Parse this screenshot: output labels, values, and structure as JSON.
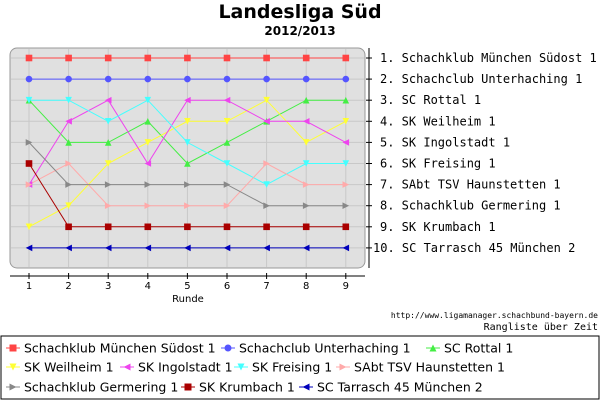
{
  "chart_data": {
    "type": "line",
    "title": "Landesliga Süd",
    "subtitle": "2012/2013",
    "xlabel": "Runde",
    "x": [
      1,
      2,
      3,
      4,
      5,
      6,
      7,
      8,
      9
    ],
    "ylim": [
      1,
      10
    ],
    "y_inverted": true,
    "grid": true,
    "rank_labels": [
      "1. Schachklub München Südost 1",
      "2. Schachclub Unterhaching 1",
      "3. SC Rottal 1",
      "4. SK Weilheim 1",
      "5. SK Ingolstadt 1",
      "6. SK Freising 1",
      "7. SAbt TSV Haunstetten 1",
      "8. Schachklub Germering 1",
      "9. SK Krumbach 1",
      "10. SC Tarrasch 45 München 2"
    ],
    "series": [
      {
        "name": "Schachklub München Südost 1",
        "color": "#ff4444",
        "marker": "square",
        "values": [
          1,
          1,
          1,
          1,
          1,
          1,
          1,
          1,
          1
        ]
      },
      {
        "name": "Schachclub Unterhaching 1",
        "color": "#5555ff",
        "marker": "circle",
        "values": [
          2,
          2,
          2,
          2,
          2,
          2,
          2,
          2,
          2
        ]
      },
      {
        "name": "SC Rottal 1",
        "color": "#44ee44",
        "marker": "triangle-up",
        "values": [
          3,
          5,
          5,
          4,
          6,
          5,
          4,
          3,
          3
        ]
      },
      {
        "name": "SK Weilheim 1",
        "color": "#ffff33",
        "marker": "triangle-down",
        "values": [
          9,
          8,
          6,
          5,
          4,
          4,
          3,
          5,
          4
        ]
      },
      {
        "name": "SK Ingolstadt 1",
        "color": "#ee44ee",
        "marker": "triangle-left",
        "values": [
          7,
          4,
          3,
          6,
          3,
          3,
          4,
          4,
          5
        ]
      },
      {
        "name": "SK Freising 1",
        "color": "#44ffff",
        "marker": "triangle-down",
        "values": [
          3,
          3,
          4,
          3,
          5,
          6,
          7,
          6,
          6
        ]
      },
      {
        "name": "SAbt TSV Haunstetten 1",
        "color": "#ffaaaa",
        "marker": "triangle-right",
        "values": [
          7,
          6,
          8,
          8,
          8,
          8,
          6,
          7,
          7
        ]
      },
      {
        "name": "Schachklub Germering 1",
        "color": "#888888",
        "marker": "triangle-right",
        "values": [
          5,
          7,
          7,
          7,
          7,
          7,
          8,
          8,
          8
        ]
      },
      {
        "name": "SK Krumbach 1",
        "color": "#aa0000",
        "marker": "square",
        "values": [
          6,
          9,
          9,
          9,
          9,
          9,
          9,
          9,
          9
        ]
      },
      {
        "name": "SC Tarrasch 45 München 2",
        "color": "#0000bb",
        "marker": "triangle-left",
        "values": [
          10,
          10,
          10,
          10,
          10,
          10,
          10,
          10,
          10
        ]
      }
    ],
    "legend_placement": "bottom",
    "footer_url": "http://www.ligamanager.schachbund-bayern.de",
    "footer_note": "Rangliste über Zeit"
  }
}
